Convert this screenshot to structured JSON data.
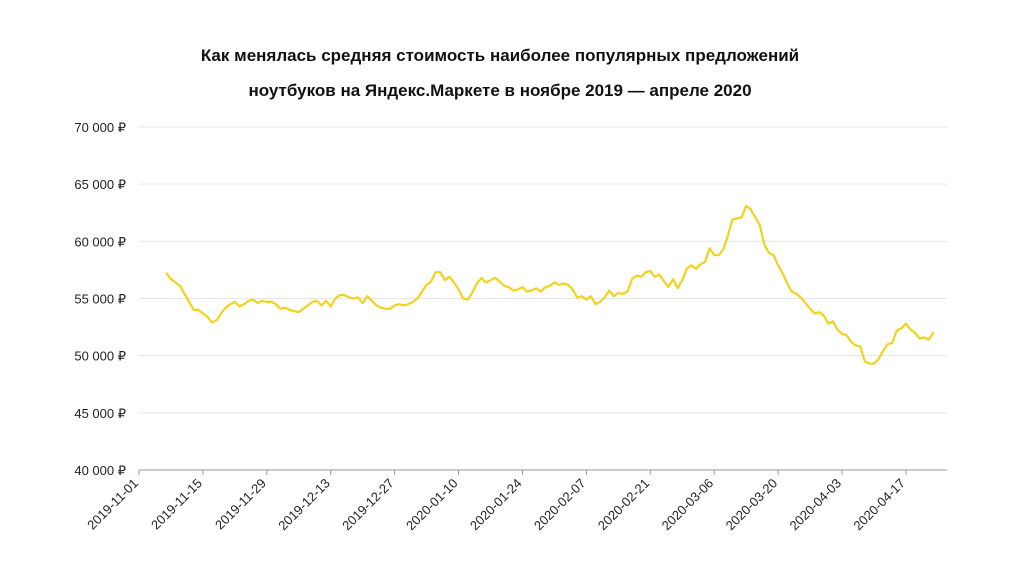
{
  "chart_data": {
    "type": "line",
    "title_lines": [
      "Как менялась средняя стоимость наиболее популярных предложений",
      "ноутбуков на Яндекс.Маркете в ноябре 2019 — апреле 2020"
    ],
    "xlabel": "",
    "ylabel": "",
    "ylim": [
      40000,
      70000
    ],
    "y_ticks": [
      {
        "value": 40000,
        "label": "40 000 ₽"
      },
      {
        "value": 45000,
        "label": "45 000 ₽"
      },
      {
        "value": 50000,
        "label": "50 000 ₽"
      },
      {
        "value": 55000,
        "label": "55 000 ₽"
      },
      {
        "value": 60000,
        "label": "60 000 ₽"
      },
      {
        "value": 65000,
        "label": "65 000 ₽"
      },
      {
        "value": 70000,
        "label": "70 000 ₽"
      }
    ],
    "x_range": [
      "2019-11-01",
      "2020-04-26"
    ],
    "x_ticks": [
      "2019-11-01",
      "2019-11-15",
      "2019-11-29",
      "2019-12-13",
      "2019-12-27",
      "2020-01-10",
      "2020-01-24",
      "2020-02-07",
      "2020-02-21",
      "2020-03-06",
      "2020-03-20",
      "2020-04-03",
      "2020-04-17"
    ],
    "grid": true,
    "line_color": "#f3d21c",
    "series": [
      {
        "points": [
          [
            "2019-11-07",
            57200
          ],
          [
            "2019-11-08",
            56700
          ],
          [
            "2019-11-09",
            56400
          ],
          [
            "2019-11-10",
            56100
          ],
          [
            "2019-11-11",
            55400
          ],
          [
            "2019-11-12",
            54700
          ],
          [
            "2019-11-13",
            54000
          ],
          [
            "2019-11-14",
            54000
          ],
          [
            "2019-11-15",
            53700
          ],
          [
            "2019-11-16",
            53400
          ],
          [
            "2019-11-17",
            52900
          ],
          [
            "2019-11-18",
            53100
          ],
          [
            "2019-11-19",
            53700
          ],
          [
            "2019-11-20",
            54200
          ],
          [
            "2019-11-21",
            54500
          ],
          [
            "2019-11-22",
            54700
          ],
          [
            "2019-11-23",
            54300
          ],
          [
            "2019-11-24",
            54500
          ],
          [
            "2019-11-25",
            54800
          ],
          [
            "2019-11-26",
            54900
          ],
          [
            "2019-11-27",
            54600
          ],
          [
            "2019-11-28",
            54800
          ],
          [
            "2019-11-29",
            54700
          ],
          [
            "2019-11-30",
            54700
          ],
          [
            "2019-12-01",
            54500
          ],
          [
            "2019-12-02",
            54100
          ],
          [
            "2019-12-03",
            54200
          ],
          [
            "2019-12-04",
            54000
          ],
          [
            "2019-12-05",
            53900
          ],
          [
            "2019-12-06",
            53800
          ],
          [
            "2019-12-07",
            54100
          ],
          [
            "2019-12-08",
            54400
          ],
          [
            "2019-12-09",
            54700
          ],
          [
            "2019-12-10",
            54800
          ],
          [
            "2019-12-11",
            54400
          ],
          [
            "2019-12-12",
            54800
          ],
          [
            "2019-12-13",
            54300
          ],
          [
            "2019-12-14",
            55000
          ],
          [
            "2019-12-15",
            55300
          ],
          [
            "2019-12-16",
            55300
          ],
          [
            "2019-12-17",
            55100
          ],
          [
            "2019-12-18",
            55000
          ],
          [
            "2019-12-19",
            55100
          ],
          [
            "2019-12-20",
            54600
          ],
          [
            "2019-12-21",
            55200
          ],
          [
            "2019-12-22",
            54800
          ],
          [
            "2019-12-23",
            54400
          ],
          [
            "2019-12-24",
            54200
          ],
          [
            "2019-12-25",
            54100
          ],
          [
            "2019-12-26",
            54100
          ],
          [
            "2019-12-27",
            54400
          ],
          [
            "2019-12-28",
            54500
          ],
          [
            "2019-12-29",
            54400
          ],
          [
            "2019-12-30",
            54500
          ],
          [
            "2019-12-31",
            54700
          ],
          [
            "2020-01-01",
            55000
          ],
          [
            "2020-01-02",
            55600
          ],
          [
            "2020-01-03",
            56200
          ],
          [
            "2020-01-04",
            56500
          ],
          [
            "2020-01-05",
            57300
          ],
          [
            "2020-01-06",
            57300
          ],
          [
            "2020-01-07",
            56600
          ],
          [
            "2020-01-08",
            56900
          ],
          [
            "2020-01-09",
            56400
          ],
          [
            "2020-01-10",
            55800
          ],
          [
            "2020-01-11",
            55000
          ],
          [
            "2020-01-12",
            54900
          ],
          [
            "2020-01-13",
            55500
          ],
          [
            "2020-01-14",
            56300
          ],
          [
            "2020-01-15",
            56800
          ],
          [
            "2020-01-16",
            56400
          ],
          [
            "2020-01-17",
            56600
          ],
          [
            "2020-01-18",
            56800
          ],
          [
            "2020-01-19",
            56500
          ],
          [
            "2020-01-20",
            56100
          ],
          [
            "2020-01-21",
            56000
          ],
          [
            "2020-01-22",
            55700
          ],
          [
            "2020-01-23",
            55800
          ],
          [
            "2020-01-24",
            56000
          ],
          [
            "2020-01-25",
            55600
          ],
          [
            "2020-01-26",
            55700
          ],
          [
            "2020-01-27",
            55900
          ],
          [
            "2020-01-28",
            55600
          ],
          [
            "2020-01-29",
            56000
          ],
          [
            "2020-01-30",
            56100
          ],
          [
            "2020-01-31",
            56400
          ],
          [
            "2020-02-01",
            56200
          ],
          [
            "2020-02-02",
            56300
          ],
          [
            "2020-02-03",
            56200
          ],
          [
            "2020-02-04",
            55800
          ],
          [
            "2020-02-05",
            55100
          ],
          [
            "2020-02-06",
            55200
          ],
          [
            "2020-02-07",
            54900
          ],
          [
            "2020-02-08",
            55200
          ],
          [
            "2020-02-09",
            54500
          ],
          [
            "2020-02-10",
            54700
          ],
          [
            "2020-02-11",
            55100
          ],
          [
            "2020-02-12",
            55700
          ],
          [
            "2020-02-13",
            55200
          ],
          [
            "2020-02-14",
            55500
          ],
          [
            "2020-02-15",
            55400
          ],
          [
            "2020-02-16",
            55600
          ],
          [
            "2020-02-17",
            56700
          ],
          [
            "2020-02-18",
            57000
          ],
          [
            "2020-02-19",
            56900
          ],
          [
            "2020-02-20",
            57300
          ],
          [
            "2020-02-21",
            57400
          ],
          [
            "2020-02-22",
            56900
          ],
          [
            "2020-02-23",
            57100
          ],
          [
            "2020-02-24",
            56500
          ],
          [
            "2020-02-25",
            56000
          ],
          [
            "2020-02-26",
            56700
          ],
          [
            "2020-02-27",
            55900
          ],
          [
            "2020-02-28",
            56600
          ],
          [
            "2020-02-29",
            57600
          ],
          [
            "2020-03-01",
            57900
          ],
          [
            "2020-03-02",
            57600
          ],
          [
            "2020-03-03",
            58000
          ],
          [
            "2020-03-04",
            58200
          ],
          [
            "2020-03-05",
            59400
          ],
          [
            "2020-03-06",
            58800
          ],
          [
            "2020-03-07",
            58800
          ],
          [
            "2020-03-08",
            59300
          ],
          [
            "2020-03-09",
            60500
          ],
          [
            "2020-03-10",
            61900
          ],
          [
            "2020-03-11",
            62000
          ],
          [
            "2020-03-12",
            62100
          ],
          [
            "2020-03-13",
            63100
          ],
          [
            "2020-03-14",
            62800
          ],
          [
            "2020-03-15",
            62100
          ],
          [
            "2020-03-16",
            61400
          ],
          [
            "2020-03-17",
            59700
          ],
          [
            "2020-03-18",
            59000
          ],
          [
            "2020-03-19",
            58800
          ],
          [
            "2020-03-20",
            57900
          ],
          [
            "2020-03-21",
            57200
          ],
          [
            "2020-03-22",
            56300
          ],
          [
            "2020-03-23",
            55600
          ],
          [
            "2020-03-24",
            55400
          ],
          [
            "2020-03-25",
            55100
          ],
          [
            "2020-03-26",
            54600
          ],
          [
            "2020-03-27",
            54100
          ],
          [
            "2020-03-28",
            53700
          ],
          [
            "2020-03-29",
            53800
          ],
          [
            "2020-03-30",
            53500
          ],
          [
            "2020-03-31",
            52800
          ],
          [
            "2020-04-01",
            53000
          ],
          [
            "2020-04-02",
            52300
          ],
          [
            "2020-04-03",
            51900
          ],
          [
            "2020-04-04",
            51800
          ],
          [
            "2020-04-05",
            51200
          ],
          [
            "2020-04-06",
            50900
          ],
          [
            "2020-04-07",
            50800
          ],
          [
            "2020-04-08",
            49500
          ],
          [
            "2020-04-09",
            49300
          ],
          [
            "2020-04-10",
            49300
          ],
          [
            "2020-04-11",
            49700
          ],
          [
            "2020-04-12",
            50400
          ],
          [
            "2020-04-13",
            51000
          ],
          [
            "2020-04-14",
            51100
          ],
          [
            "2020-04-15",
            52200
          ],
          [
            "2020-04-16",
            52400
          ],
          [
            "2020-04-17",
            52800
          ],
          [
            "2020-04-18",
            52300
          ],
          [
            "2020-04-19",
            52000
          ],
          [
            "2020-04-20",
            51500
          ],
          [
            "2020-04-21",
            51600
          ],
          [
            "2020-04-22",
            51400
          ],
          [
            "2020-04-23",
            52000
          ]
        ]
      }
    ]
  }
}
